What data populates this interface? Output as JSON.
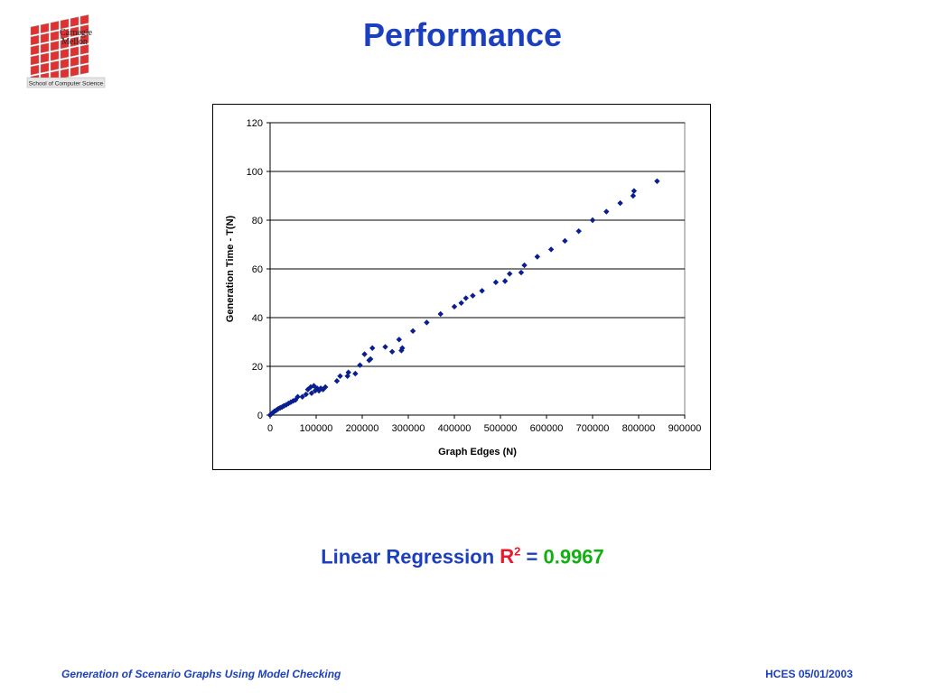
{
  "slide": {
    "title": "Performance",
    "footer_left": "Generation of Scenario Graphs Using Model Checking",
    "footer_right": "HCES 05/01/2003"
  },
  "logo": {
    "line1": "Carnegie",
    "line2": "Mellon",
    "caption": "School of Computer Science",
    "color": "#e03030"
  },
  "regression": {
    "label": "Linear Regression",
    "r": "R",
    "exp": "2",
    "eq": " = ",
    "value": "0.9967"
  },
  "chart_data": {
    "type": "scatter",
    "xlabel": "Graph Edges (N)",
    "ylabel": "Generation Time - T(N)",
    "xlim": [
      0,
      900000
    ],
    "ylim": [
      0,
      120
    ],
    "xticks": [
      0,
      100000,
      200000,
      300000,
      400000,
      500000,
      600000,
      700000,
      800000,
      900000
    ],
    "yticks": [
      0,
      20,
      40,
      60,
      80,
      100,
      120
    ],
    "grid": "horizontal",
    "marker_color": "#0a1f8f",
    "points": [
      [
        0,
        0
      ],
      [
        3000,
        0.5
      ],
      [
        6000,
        1
      ],
      [
        9000,
        1.5
      ],
      [
        12000,
        1.8
      ],
      [
        15000,
        2.2
      ],
      [
        18000,
        2.6
      ],
      [
        22000,
        3
      ],
      [
        26000,
        3.3
      ],
      [
        30000,
        3.8
      ],
      [
        35000,
        4.2
      ],
      [
        40000,
        4.8
      ],
      [
        45000,
        5.3
      ],
      [
        50000,
        5.8
      ],
      [
        55000,
        6.2
      ],
      [
        60000,
        7.5
      ],
      [
        70000,
        7.5
      ],
      [
        78000,
        8.5
      ],
      [
        82000,
        10.5
      ],
      [
        88000,
        11.5
      ],
      [
        90000,
        9
      ],
      [
        95000,
        12
      ],
      [
        98000,
        10
      ],
      [
        102000,
        11
      ],
      [
        106000,
        10
      ],
      [
        110000,
        11
      ],
      [
        115000,
        10.5
      ],
      [
        120000,
        11.5
      ],
      [
        145000,
        14
      ],
      [
        152000,
        16
      ],
      [
        168000,
        16
      ],
      [
        170000,
        17.5
      ],
      [
        185000,
        17
      ],
      [
        195000,
        20.5
      ],
      [
        205000,
        25
      ],
      [
        215000,
        22.5
      ],
      [
        218000,
        23
      ],
      [
        222000,
        27.5
      ],
      [
        250000,
        28
      ],
      [
        265000,
        26
      ],
      [
        280000,
        31
      ],
      [
        285000,
        26.5
      ],
      [
        287000,
        27.5
      ],
      [
        310000,
        34.5
      ],
      [
        340000,
        38
      ],
      [
        370000,
        41.5
      ],
      [
        400000,
        44.5
      ],
      [
        415000,
        46
      ],
      [
        425000,
        48
      ],
      [
        440000,
        49
      ],
      [
        460000,
        51
      ],
      [
        490000,
        54.5
      ],
      [
        510000,
        55
      ],
      [
        520000,
        58
      ],
      [
        545000,
        58.5
      ],
      [
        552000,
        61.5
      ],
      [
        580000,
        65
      ],
      [
        610000,
        68
      ],
      [
        640000,
        71.5
      ],
      [
        670000,
        75.5
      ],
      [
        700000,
        80
      ],
      [
        730000,
        83.5
      ],
      [
        760000,
        87
      ],
      [
        788000,
        90
      ],
      [
        790000,
        92
      ],
      [
        840000,
        96
      ]
    ]
  }
}
